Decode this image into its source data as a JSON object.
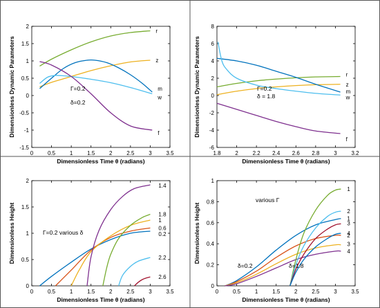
{
  "chart_data": [
    {
      "type": "line",
      "xlabel": "Dimensionless Time θ (radians)",
      "ylabel": "Dimensionless Dynamic Parameters",
      "xlim": [
        0,
        3.5
      ],
      "ylim": [
        -1.5,
        2
      ],
      "xticks": [
        "0",
        "0.5",
        "1",
        "1.5",
        "2",
        "2.5",
        "3",
        "3.5"
      ],
      "yticks": [
        "-1.5",
        "-1",
        "-0.5",
        "0",
        "0.5",
        "1",
        "1.5",
        "2"
      ],
      "annotations": [
        "Γ=0.2",
        "δ=0.2"
      ],
      "series": [
        {
          "name": "r",
          "color": "#77ac30",
          "x": [
            0.2,
            0.5,
            1.0,
            1.5,
            2.0,
            2.5,
            3.0
          ],
          "y": [
            0.85,
            1.05,
            1.32,
            1.55,
            1.72,
            1.82,
            1.87
          ]
        },
        {
          "name": "z",
          "color": "#edb120",
          "x": [
            0.2,
            0.5,
            1.0,
            1.5,
            2.0,
            2.5,
            3.0
          ],
          "y": [
            0.25,
            0.38,
            0.55,
            0.72,
            0.86,
            0.97,
            1.02
          ]
        },
        {
          "name": "m",
          "color": "#0072bd",
          "x": [
            0.2,
            0.5,
            0.8,
            1.1,
            1.4,
            1.6,
            1.9,
            2.2,
            2.5,
            2.8,
            3.05
          ],
          "y": [
            0.2,
            0.5,
            0.78,
            0.95,
            1.02,
            1.02,
            0.95,
            0.8,
            0.6,
            0.35,
            0.1
          ]
        },
        {
          "name": "w",
          "color": "#4dbeee",
          "x": [
            0.2,
            0.4,
            0.6,
            0.8,
            1.0,
            1.5,
            2.0,
            2.5,
            3.05
          ],
          "y": [
            0.35,
            0.53,
            0.58,
            0.57,
            0.55,
            0.47,
            0.37,
            0.23,
            0.05
          ]
        },
        {
          "name": "f",
          "color": "#7e2f8e",
          "x": [
            0.2,
            0.5,
            1.0,
            1.5,
            2.0,
            2.5,
            3.05
          ],
          "y": [
            0.98,
            0.88,
            0.55,
            0.05,
            -0.5,
            -0.88,
            -1.0
          ]
        }
      ]
    },
    {
      "type": "line",
      "xlabel": "Dimensionless Time θ (radians)",
      "ylabel": "Dimensionless Dynamic Parameters",
      "xlim": [
        1.8,
        3.2
      ],
      "ylim": [
        -6,
        8
      ],
      "xticks": [
        "1.8",
        "2",
        "2.2",
        "2.4",
        "2.6",
        "2.8",
        "3",
        "3.2"
      ],
      "yticks": [
        "-6",
        "-4",
        "-2",
        "0",
        "2",
        "4",
        "6",
        "8"
      ],
      "annotations": [
        "Γ=0.2",
        "δ = 1.8"
      ],
      "series": [
        {
          "name": "r",
          "color": "#77ac30",
          "x": [
            1.8,
            2.0,
            2.2,
            2.4,
            2.6,
            2.8,
            3.05
          ],
          "y": [
            1.0,
            1.4,
            1.7,
            1.9,
            2.05,
            2.15,
            2.2
          ]
        },
        {
          "name": "z",
          "color": "#edb120",
          "x": [
            1.8,
            2.0,
            2.2,
            2.4,
            2.6,
            2.8,
            3.05
          ],
          "y": [
            0.1,
            0.5,
            0.8,
            1.0,
            1.15,
            1.25,
            1.3
          ]
        },
        {
          "name": "m",
          "color": "#0072bd",
          "x": [
            1.8,
            2.0,
            2.2,
            2.4,
            2.6,
            2.8,
            3.05
          ],
          "y": [
            4.3,
            4.0,
            3.5,
            2.8,
            2.1,
            1.3,
            0.4
          ]
        },
        {
          "name": "w",
          "color": "#4dbeee",
          "x": [
            1.81,
            1.85,
            1.9,
            2.0,
            2.2,
            2.4,
            2.6,
            2.8,
            3.05
          ],
          "y": [
            6.2,
            4.0,
            3.0,
            2.0,
            1.2,
            0.8,
            0.5,
            0.25,
            0.05
          ]
        },
        {
          "name": "f",
          "color": "#7e2f8e",
          "x": [
            1.8,
            2.0,
            2.2,
            2.4,
            2.6,
            2.8,
            3.05
          ],
          "y": [
            -0.9,
            -1.6,
            -2.3,
            -3.0,
            -3.6,
            -4.1,
            -4.4
          ]
        }
      ]
    },
    {
      "type": "line",
      "xlabel": "Dimensionless Time θ (radians)",
      "ylabel": "Dimensionless Height",
      "xlim": [
        0,
        3.5
      ],
      "ylim": [
        0,
        2
      ],
      "xticks": [
        "0",
        "0.5",
        "1",
        "1.5",
        "2",
        "2.5",
        "3",
        "3.5"
      ],
      "yticks": [
        "0",
        "0.5",
        "1",
        "1.5",
        "2"
      ],
      "annotations": [
        "Γ=0.2   various δ"
      ],
      "series": [
        {
          "name": "0.2",
          "color": "#0072bd",
          "x": [
            0.2,
            0.5,
            1.0,
            1.5,
            2.0,
            2.5,
            3.0
          ],
          "y": [
            0,
            0.18,
            0.45,
            0.7,
            0.88,
            1.0,
            1.04
          ]
        },
        {
          "name": "0.6",
          "color": "#d95319",
          "x": [
            0.6,
            0.8,
            1.0,
            1.5,
            2.0,
            2.5,
            3.0
          ],
          "y": [
            0,
            0.15,
            0.3,
            0.68,
            0.92,
            1.04,
            1.1
          ]
        },
        {
          "name": "1",
          "color": "#edb120",
          "x": [
            1.0,
            1.2,
            1.5,
            2.0,
            2.5,
            3.0
          ],
          "y": [
            0,
            0.3,
            0.65,
            0.95,
            1.15,
            1.25
          ]
        },
        {
          "name": "1.4",
          "color": "#7e2f8e",
          "x": [
            1.4,
            1.5,
            1.7,
            2.0,
            2.3,
            2.6,
            3.0
          ],
          "y": [
            0,
            0.55,
            1.05,
            1.45,
            1.7,
            1.85,
            1.92
          ]
        },
        {
          "name": "1.8",
          "color": "#77ac30",
          "x": [
            1.8,
            1.9,
            2.0,
            2.2,
            2.5,
            2.8,
            3.0
          ],
          "y": [
            0,
            0.35,
            0.6,
            0.9,
            1.15,
            1.3,
            1.36
          ]
        },
        {
          "name": "2.2",
          "color": "#4dbeee",
          "x": [
            2.2,
            2.3,
            2.5,
            2.7,
            3.0
          ],
          "y": [
            0,
            0.2,
            0.37,
            0.47,
            0.54
          ]
        },
        {
          "name": "2.6",
          "color": "#a2142f",
          "x": [
            2.6,
            2.7,
            2.8,
            2.9,
            3.0
          ],
          "y": [
            0,
            0.07,
            0.12,
            0.15,
            0.17
          ]
        }
      ]
    },
    {
      "type": "line",
      "xlabel": "Dimensionless Time θ (radians)",
      "ylabel": "Dimensionless Height",
      "xlim": [
        0,
        3.5
      ],
      "ylim": [
        0,
        1
      ],
      "xticks": [
        "0",
        "0.5",
        "1",
        "1.5",
        "2",
        "2.5",
        "3",
        "3.5"
      ],
      "yticks": [
        "0",
        "0.2",
        "0.4",
        "0.6",
        "0.8",
        "1"
      ],
      "annotations": [
        "various Γ",
        "δ=0.2",
        "δ=1.8"
      ],
      "series": [
        {
          "name": "1",
          "color": "#0072bd",
          "x": [
            0.2,
            0.5,
            1.0,
            1.5,
            2.0,
            2.5,
            3.0,
            3.14
          ],
          "y": [
            0,
            0.05,
            0.18,
            0.34,
            0.48,
            0.58,
            0.63,
            0.64
          ]
        },
        {
          "name": "2",
          "color": "#d95319",
          "x": [
            0.2,
            0.5,
            1.0,
            1.5,
            2.0,
            2.5,
            3.0,
            3.14
          ],
          "y": [
            0,
            0.04,
            0.14,
            0.27,
            0.38,
            0.45,
            0.48,
            0.48
          ]
        },
        {
          "name": "3",
          "color": "#edb120",
          "x": [
            0.2,
            0.5,
            1.0,
            1.5,
            2.0,
            2.5,
            3.0,
            3.14
          ],
          "y": [
            0,
            0.03,
            0.11,
            0.21,
            0.3,
            0.36,
            0.39,
            0.39
          ]
        },
        {
          "name": "4",
          "color": "#7e2f8e",
          "x": [
            0.2,
            0.5,
            1.0,
            1.5,
            2.0,
            2.5,
            3.0,
            3.14
          ],
          "y": [
            0,
            0.02,
            0.09,
            0.17,
            0.25,
            0.3,
            0.33,
            0.33
          ]
        },
        {
          "name": "1",
          "color": "#77ac30",
          "x": [
            1.85,
            2.0,
            2.2,
            2.5,
            2.8,
            3.0,
            3.14
          ],
          "y": [
            0,
            0.25,
            0.5,
            0.72,
            0.86,
            0.91,
            0.92
          ]
        },
        {
          "name": "2",
          "color": "#4dbeee",
          "x": [
            1.85,
            2.0,
            2.2,
            2.5,
            2.8,
            3.0,
            3.14
          ],
          "y": [
            0,
            0.2,
            0.38,
            0.55,
            0.66,
            0.7,
            0.71
          ]
        },
        {
          "name": "3",
          "color": "#a2142f",
          "x": [
            1.85,
            2.0,
            2.2,
            2.5,
            2.8,
            3.0,
            3.14
          ],
          "y": [
            0,
            0.16,
            0.3,
            0.45,
            0.54,
            0.58,
            0.59
          ]
        },
        {
          "name": "4",
          "color": "#0072bd",
          "x": [
            1.85,
            2.0,
            2.2,
            2.5,
            2.8,
            3.0,
            3.14
          ],
          "y": [
            0,
            0.13,
            0.25,
            0.37,
            0.45,
            0.49,
            0.5
          ]
        }
      ]
    }
  ]
}
